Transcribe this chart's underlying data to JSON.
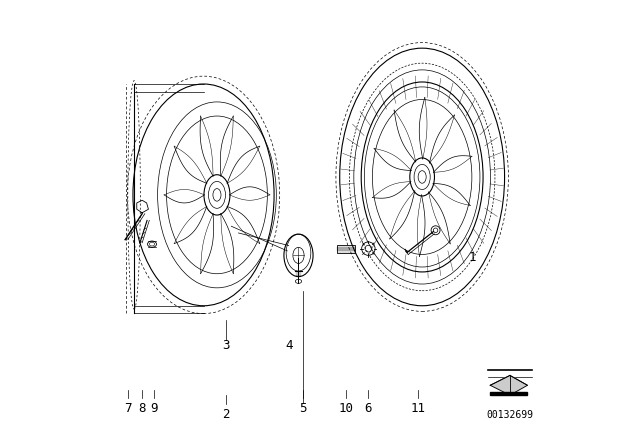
{
  "background_color": "#ffffff",
  "image_id": "00132699",
  "line_color": "#000000",
  "text_color": "#000000",
  "font_size": 9
}
